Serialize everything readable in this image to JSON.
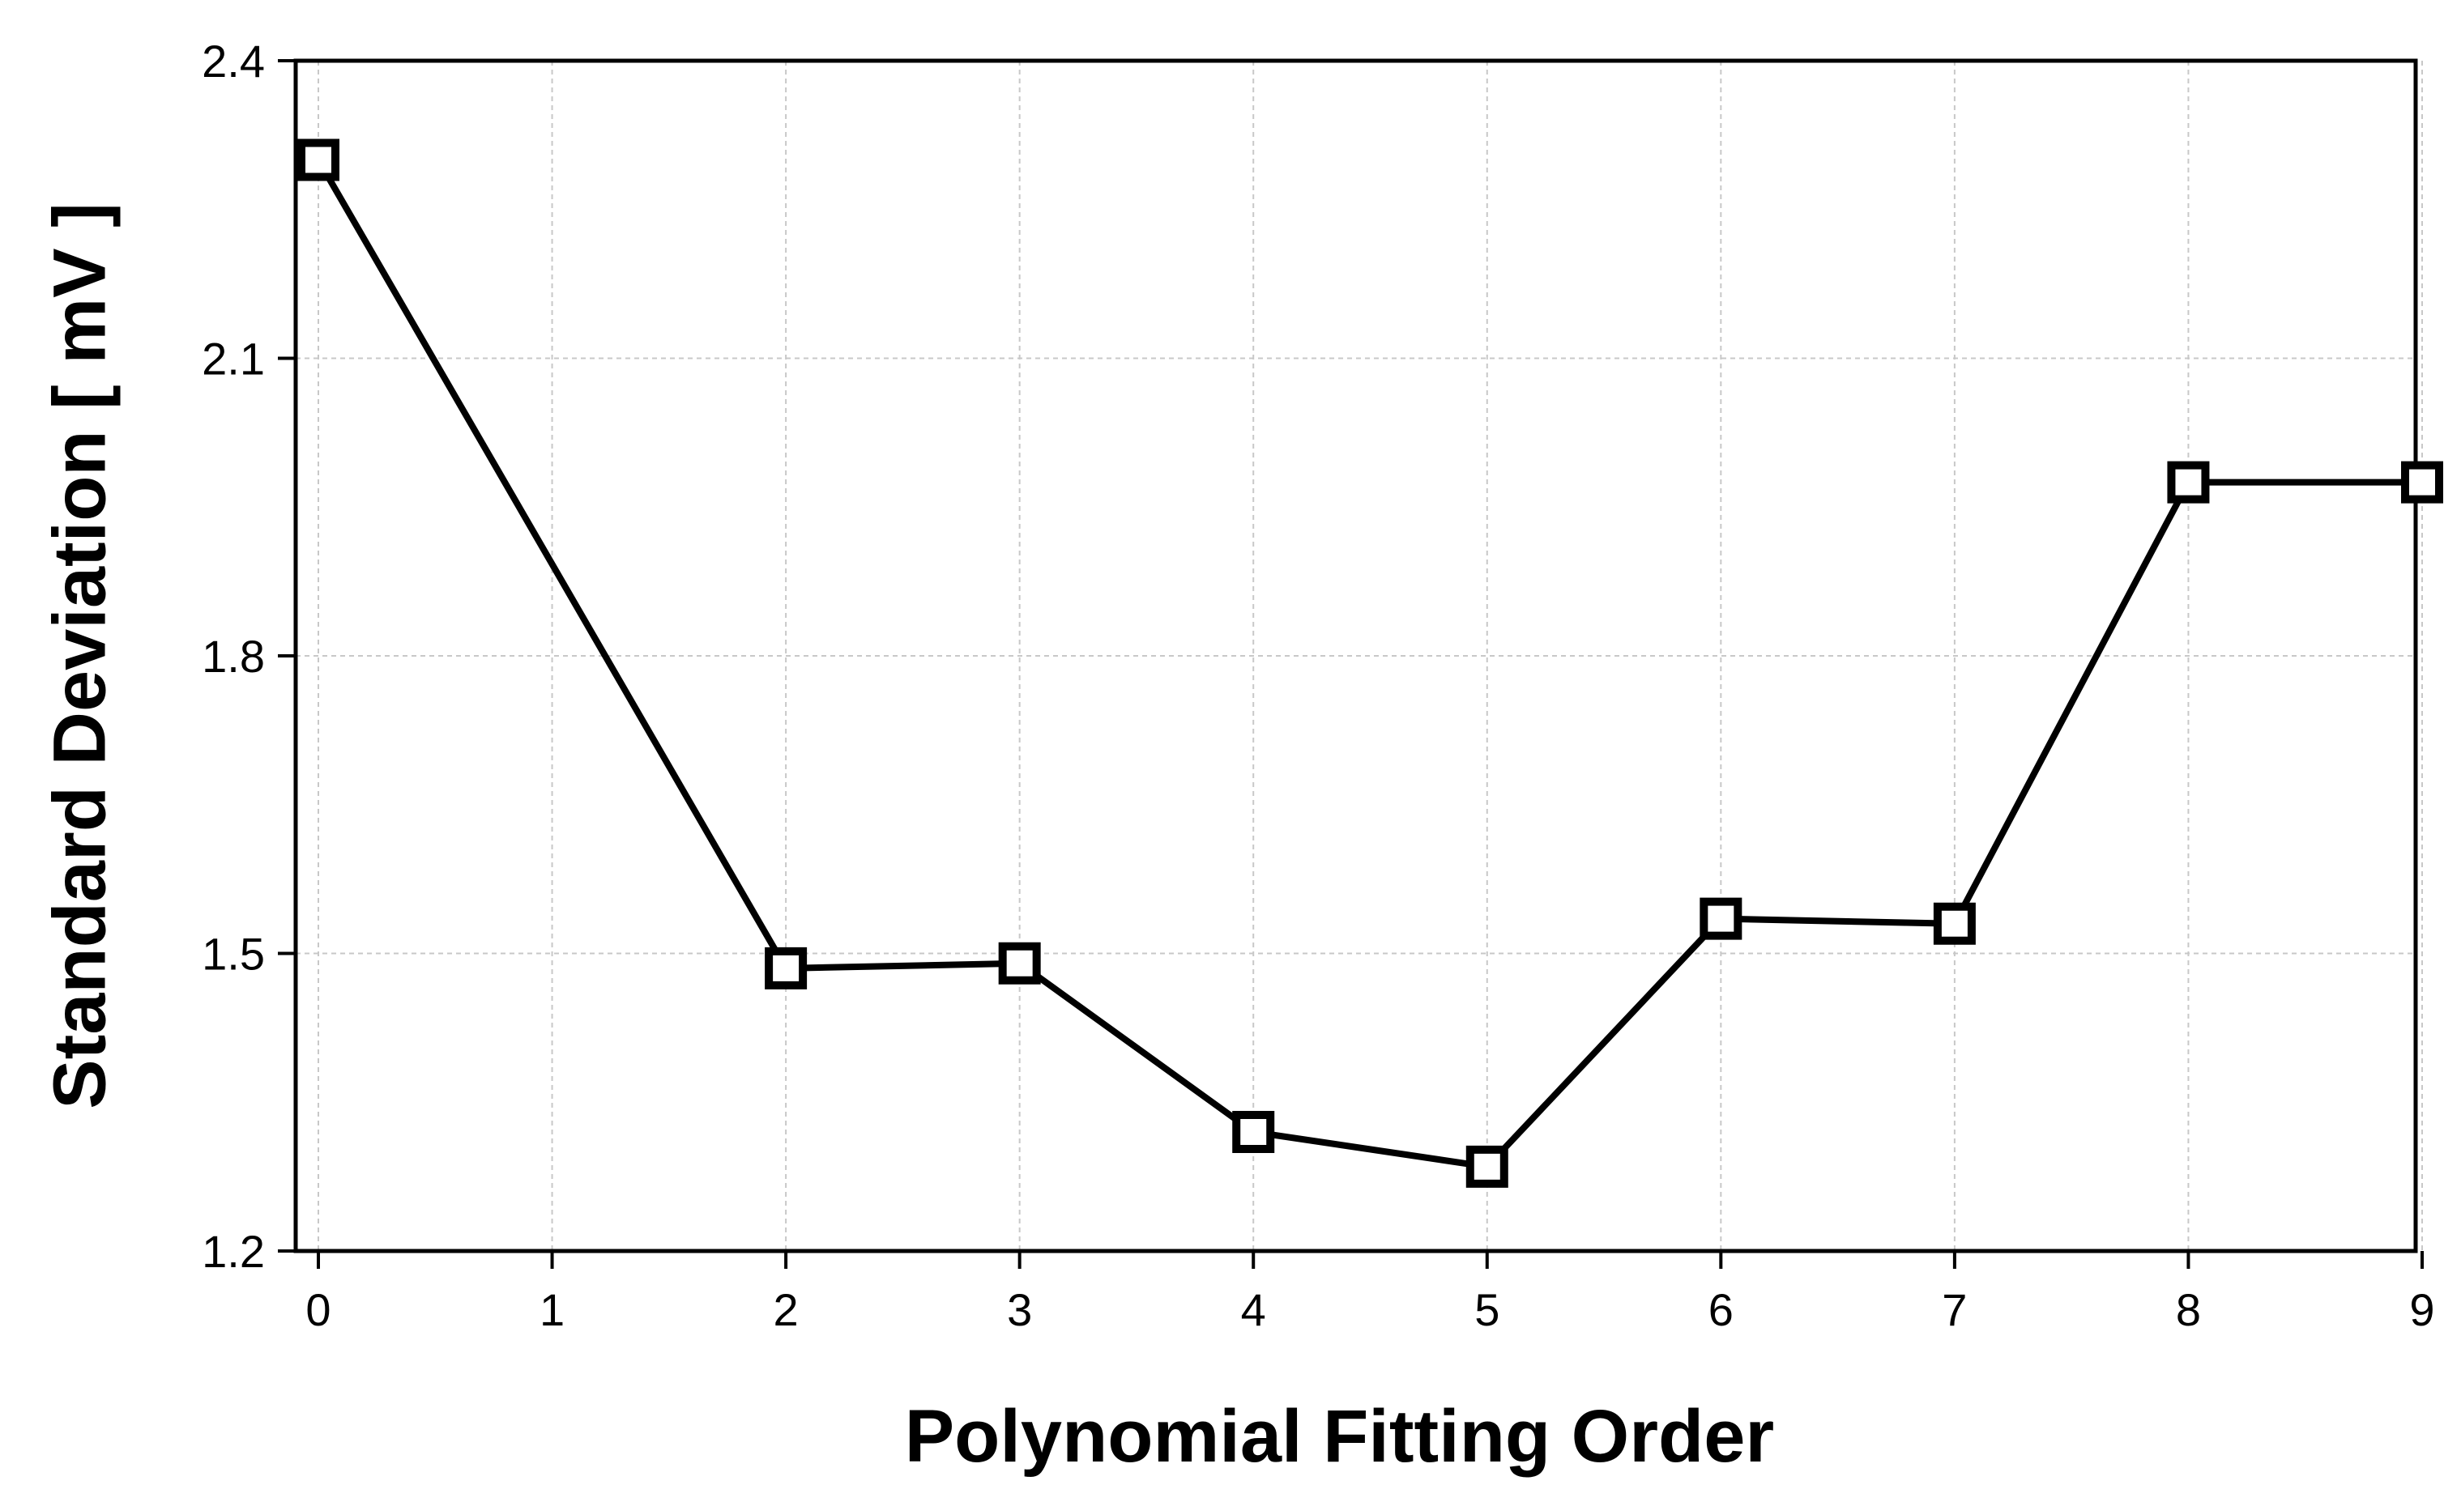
{
  "chart_data": {
    "type": "line",
    "title": "",
    "xlabel": "Polynomial Fitting Order",
    "ylabel": "Standard Deviation [ mV ]",
    "xlim": [
      0,
      9
    ],
    "ylim": [
      1.2,
      2.4
    ],
    "x_ticks": [
      "0",
      "1",
      "2",
      "3",
      "4",
      "5",
      "6",
      "7",
      "8",
      "9"
    ],
    "y_ticks": [
      "1.2",
      "1.5",
      "1.8",
      "2.1",
      "2.4"
    ],
    "grid": true,
    "series": [
      {
        "marker": "open-square",
        "color": "#000000",
        "x": [
          0,
          2,
          3,
          4,
          5,
          6,
          7,
          8,
          9
        ],
        "y": [
          2.3,
          1.485,
          1.49,
          1.32,
          1.285,
          1.535,
          1.53,
          1.975,
          1.975
        ]
      }
    ]
  }
}
